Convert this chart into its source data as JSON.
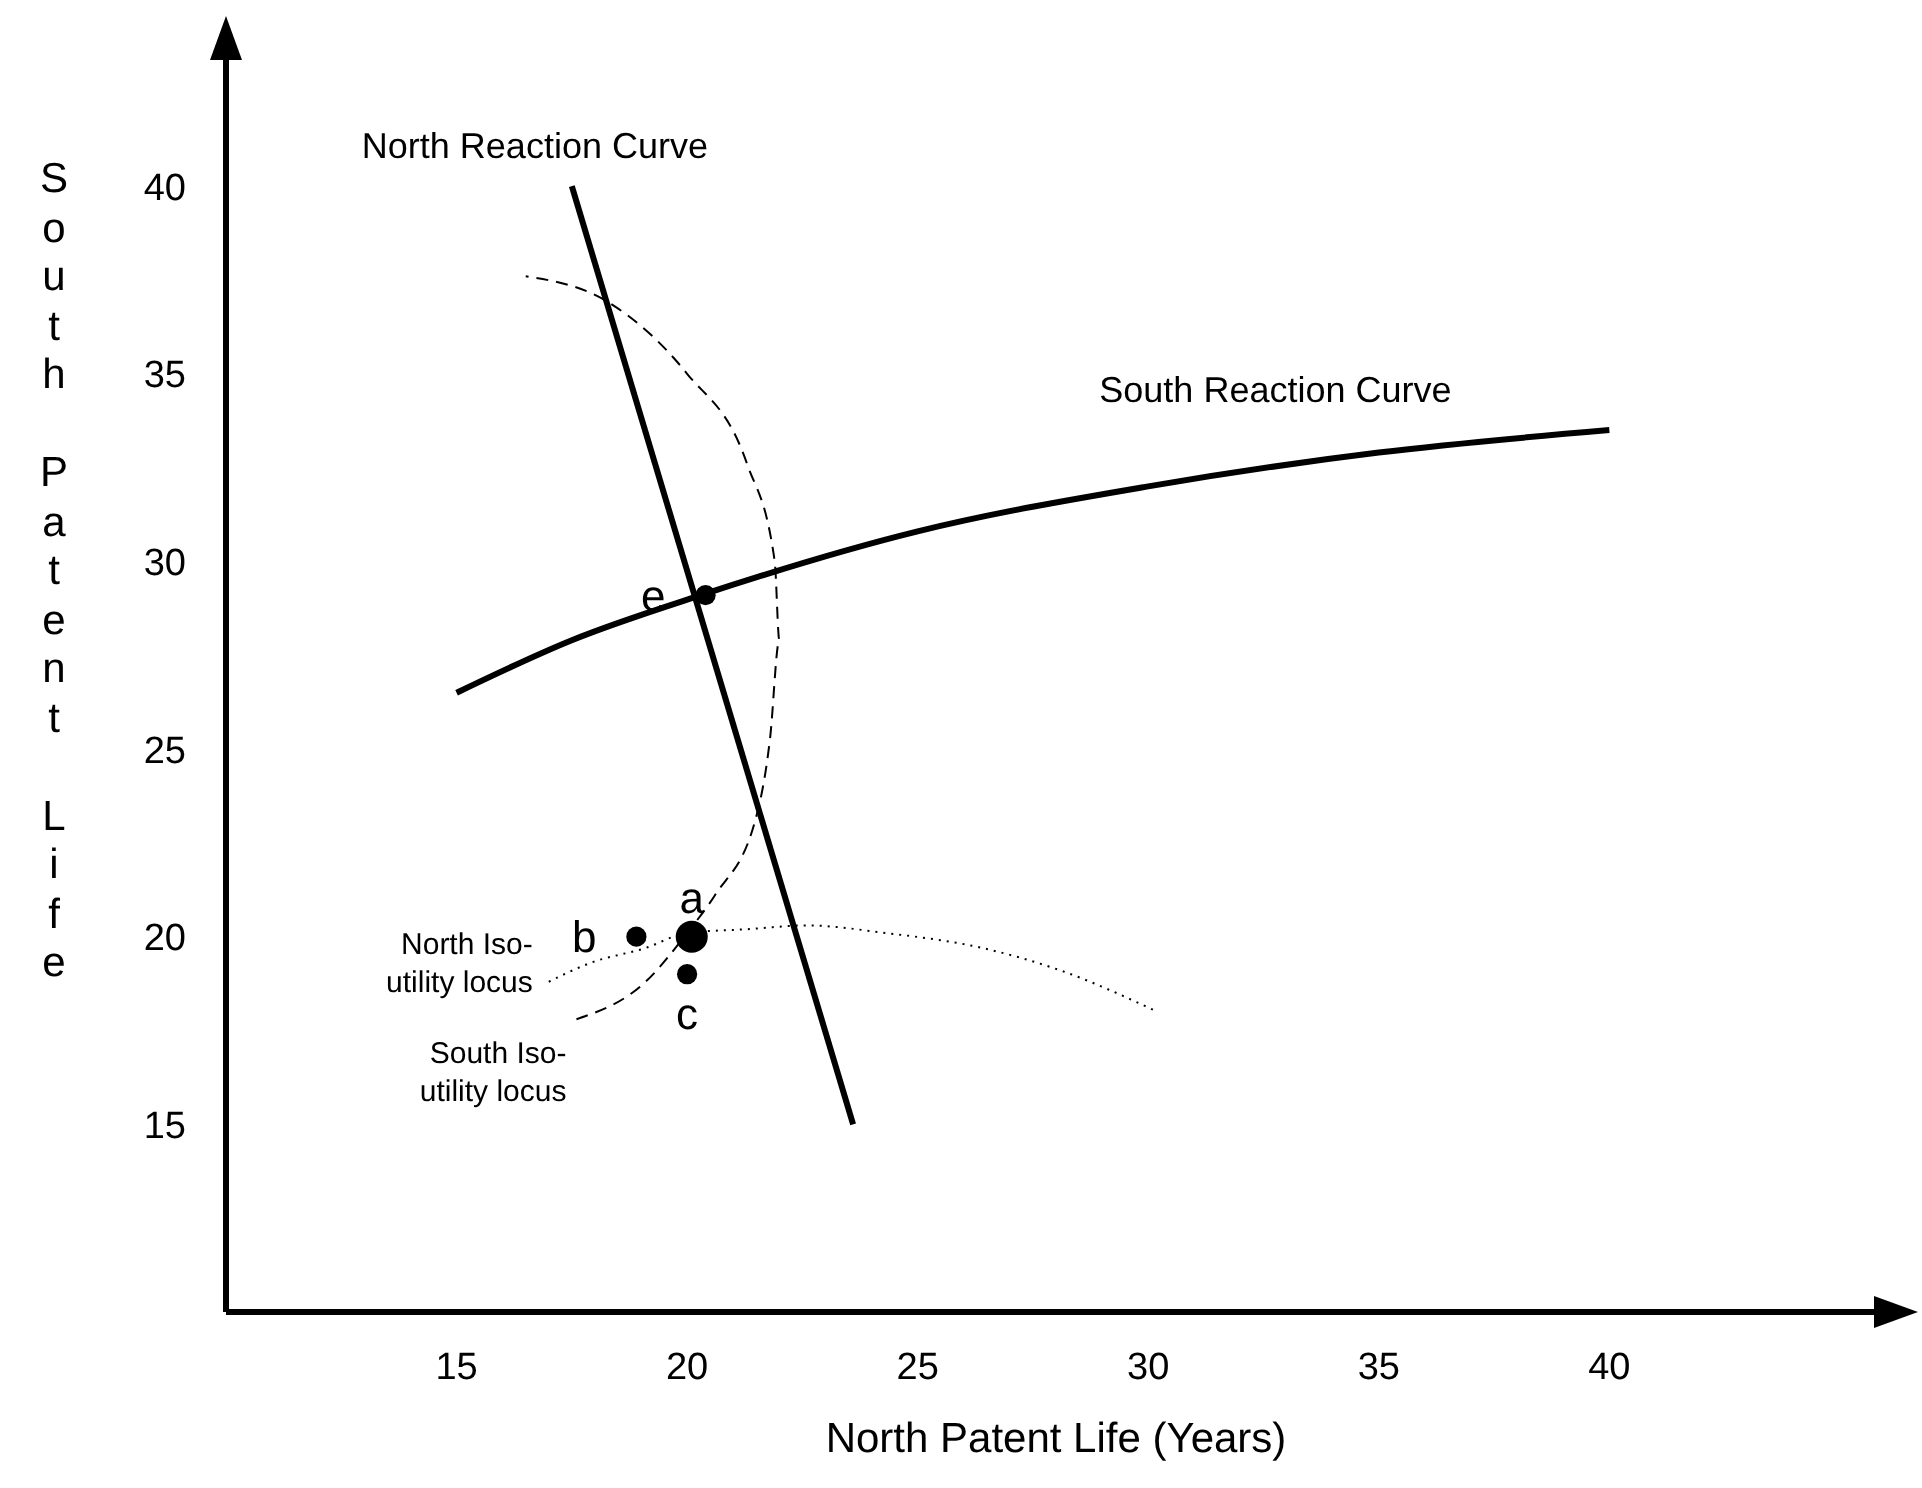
{
  "chart_data": {
    "type": "line",
    "xlabel": "North Patent Life (Years)",
    "ylabel": "South Patent Life",
    "xlim": [
      10,
      46
    ],
    "ylim": [
      10,
      44
    ],
    "xticks": [
      15,
      20,
      25,
      30,
      35,
      40
    ],
    "yticks": [
      15,
      20,
      25,
      30,
      35,
      40
    ],
    "marker": "none",
    "series": [
      {
        "name": "North Reaction Curve",
        "color": "#000000",
        "line_style": "solid",
        "x": [
          17.5,
          23.6
        ],
        "values": [
          40,
          15
        ]
      },
      {
        "name": "South Reaction Curve",
        "color": "#000000",
        "line_style": "solid",
        "x": [
          15,
          17.5,
          20.3,
          25,
          30,
          35,
          40
        ],
        "values": [
          26.5,
          27.9,
          29.1,
          30.8,
          32,
          32.9,
          33.5
        ]
      },
      {
        "name": "North Iso-utility locus",
        "color": "#000000",
        "line_style": "dotted",
        "x": [
          17,
          17.9,
          19.1,
          20,
          21.3,
          22.6,
          24.3,
          26.4,
          28.1,
          30.2
        ],
        "values": [
          18.8,
          19.3,
          19.7,
          20.1,
          20.2,
          20.3,
          20.1,
          19.7,
          19.1,
          18
        ]
      },
      {
        "name": "South Iso-utility locus",
        "color": "#000000",
        "line_style": "dashed",
        "x": [
          17.6,
          19.1,
          20,
          20.6,
          21.5,
          21.8,
          22,
          21.9,
          21.3,
          20,
          18.3,
          16.5
        ],
        "values": [
          17.8,
          18.8,
          20.1,
          21.1,
          23.2,
          25.3,
          27.9,
          30,
          32.6,
          35,
          36.9,
          37.6
        ]
      },
      {
        "type": "scatter",
        "marker": "circle",
        "color": "#000000",
        "x": [
          20.1,
          18.9,
          20,
          20.4
        ],
        "values": [
          20,
          20,
          19,
          29.1
        ],
        "sizes": [
          1,
          0.4,
          0.4,
          0.4
        ]
      }
    ],
    "annotations": [
      {
        "text": "a",
        "x": 20.1,
        "y": 20
      },
      {
        "text": "b",
        "x": 18.9,
        "y": 20
      },
      {
        "text": "c",
        "x": 20,
        "y": 19
      },
      {
        "text": "e",
        "x": 20.4,
        "y": 29.1
      }
    ]
  }
}
